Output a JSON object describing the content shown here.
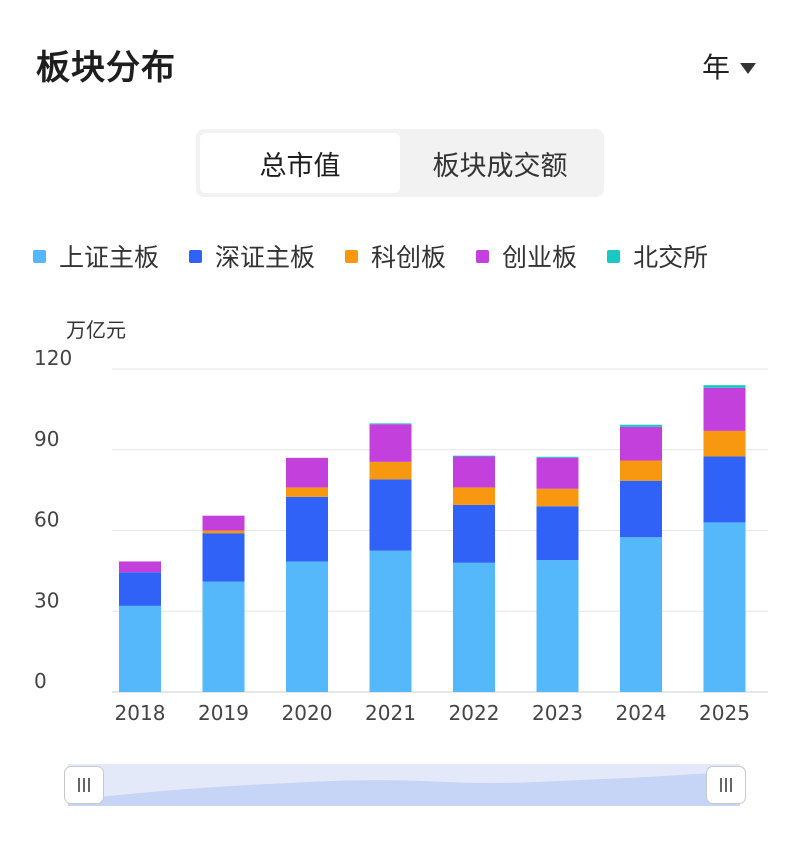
{
  "header": {
    "title": "板块分布",
    "period_label": "年"
  },
  "tabs": [
    {
      "label": "总市值",
      "active": true
    },
    {
      "label": "板块成交额",
      "active": false
    }
  ],
  "legend": [
    {
      "label": "上证主板",
      "color": "#55b8fa"
    },
    {
      "label": "深证主板",
      "color": "#3062f7"
    },
    {
      "label": "科创板",
      "color": "#f89710"
    },
    {
      "label": "创业板",
      "color": "#c440dc"
    },
    {
      "label": "北交所",
      "color": "#1cc7c1"
    }
  ],
  "chart_data": {
    "type": "bar",
    "stacked": true,
    "unit_label": "万亿元",
    "categories": [
      "2018",
      "2019",
      "2020",
      "2021",
      "2022",
      "2023",
      "2024",
      "2025"
    ],
    "series": [
      {
        "name": "上证主板",
        "color": "#55b8fa",
        "values": [
          32,
          41,
          48.5,
          52.5,
          48,
          49,
          57.5,
          63
        ]
      },
      {
        "name": "深证主板",
        "color": "#3062f7",
        "values": [
          12.5,
          18,
          24,
          26.5,
          21.5,
          20,
          21,
          24.5
        ]
      },
      {
        "name": "科创板",
        "color": "#f89710",
        "values": [
          0,
          1,
          3.5,
          6.5,
          6.5,
          6.5,
          7.5,
          9.5
        ]
      },
      {
        "name": "创业板",
        "color": "#c440dc",
        "values": [
          4,
          5.5,
          11,
          14,
          11.5,
          11.5,
          12.5,
          16
        ]
      },
      {
        "name": "北交所",
        "color": "#1cc7c1",
        "values": [
          0,
          0,
          0,
          0.3,
          0.3,
          0.4,
          0.8,
          1
        ]
      }
    ],
    "y_ticks": [
      "0",
      "30",
      "60",
      "90",
      "120"
    ],
    "ylim": [
      0,
      120
    ],
    "grid": true,
    "legend_position": "top"
  },
  "zoom": {
    "start_percent": 0,
    "end_percent": 100
  }
}
